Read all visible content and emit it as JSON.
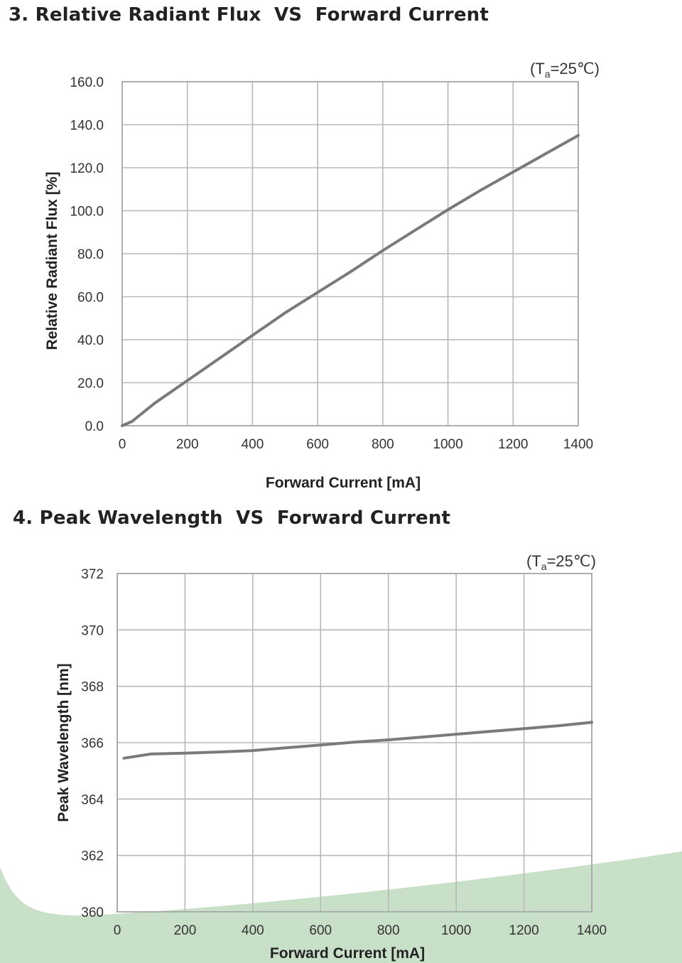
{
  "background": {
    "accent_color": "#c9e0c8"
  },
  "charts": [
    {
      "heading": "3. Relative Radiant Flux  VS  Forward Current",
      "condition": {
        "prefix": "(T",
        "subscript": "a",
        "suffix": "=25℃)"
      }
    },
    {
      "heading": "4. Peak Wavelength  VS  Forward Current",
      "condition": {
        "prefix": "(T",
        "subscript": "a",
        "suffix": "=25℃)"
      }
    }
  ],
  "chart_data": [
    {
      "type": "line",
      "title": "3. Relative Radiant Flux  VS  Forward Current",
      "xlabel": "Forward Current [mA]",
      "ylabel": "Relative Radiant Flux [%]",
      "xlim": [
        0,
        1400
      ],
      "ylim": [
        0,
        160
      ],
      "xticks": [
        0,
        200,
        400,
        600,
        800,
        1000,
        1200,
        1400
      ],
      "yticks": [
        0,
        20,
        40,
        60,
        80,
        100,
        120,
        140,
        160
      ],
      "xtick_labels": [
        "0",
        "200",
        "400",
        "600",
        "800",
        "1000",
        "1200",
        "1400"
      ],
      "ytick_labels": [
        "0.0",
        "20.0",
        "40.0",
        "60.0",
        "80.0",
        "100.0",
        "120.0",
        "140.0",
        "160.0"
      ],
      "grid": true,
      "line_color": "#7a7a7a",
      "x": [
        0,
        30,
        100,
        200,
        300,
        400,
        500,
        600,
        700,
        800,
        900,
        1000,
        1100,
        1200,
        1300,
        1400
      ],
      "y": [
        0,
        2,
        10.5,
        21,
        31.5,
        42,
        52.5,
        62,
        71.5,
        81.5,
        91,
        100.5,
        109.5,
        118,
        126.5,
        135
      ]
    },
    {
      "type": "line",
      "title": "4. Peak Wavelength  VS  Forward Current",
      "xlabel": "Forward Current [mA]",
      "ylabel": "Peak Wavelength [nm]",
      "xlim": [
        0,
        1400
      ],
      "ylim": [
        360,
        372
      ],
      "xticks": [
        0,
        200,
        400,
        600,
        800,
        1000,
        1200,
        1400
      ],
      "yticks": [
        360,
        362,
        364,
        366,
        368,
        370,
        372
      ],
      "xtick_labels": [
        "0",
        "200",
        "400",
        "600",
        "800",
        "1000",
        "1200",
        "1400"
      ],
      "ytick_labels": [
        "360",
        "362",
        "364",
        "366",
        "368",
        "370",
        "372"
      ],
      "grid": true,
      "line_color": "#7a7a7a",
      "x": [
        20,
        100,
        200,
        300,
        400,
        500,
        600,
        700,
        800,
        900,
        1000,
        1100,
        1200,
        1300,
        1400
      ],
      "y": [
        365.45,
        365.6,
        365.63,
        365.67,
        365.72,
        365.82,
        365.92,
        366.02,
        366.1,
        366.2,
        366.3,
        366.4,
        366.5,
        366.6,
        366.72
      ]
    }
  ]
}
